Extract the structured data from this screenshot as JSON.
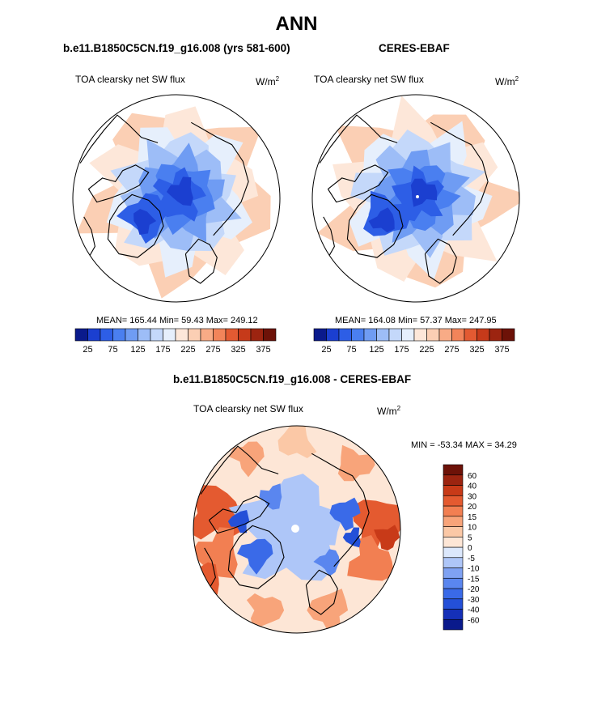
{
  "figure": {
    "title": "ANN",
    "panel_left": {
      "case": "b.e11.B1850C5CN.f19_g16.008 (yrs 581-600)",
      "variable": "TOA clearsky net SW flux",
      "units_base": "W/m",
      "units_exp": "2",
      "stats": "MEAN= 165.44  Min=  59.43  Max= 249.12"
    },
    "panel_right": {
      "case": "CERES-EBAF",
      "variable": "TOA clearsky net SW flux",
      "units_base": "W/m",
      "units_exp": "2",
      "stats": "MEAN= 164.08  Min=  57.37  Max= 247.95"
    },
    "panel_diff": {
      "case": "b.e11.B1850C5CN.f19_g16.008 - CERES-EBAF",
      "variable": "TOA clearsky net SW flux",
      "units_base": "W/m",
      "units_exp": "2",
      "stats": "MIN = -53.34 MAX =  34.29"
    }
  },
  "chart_data": [
    {
      "type": "heatmap",
      "projection": "north polar stereographic",
      "title": "b.e11.B1850C5CN.f19_g16.008 (yrs 581-600)",
      "variable": "TOA clearsky net SW flux",
      "units": "W/m2",
      "mean": 165.44,
      "min": 59.43,
      "max": 249.12,
      "colorbar_levels": [
        25,
        50,
        75,
        100,
        125,
        150,
        175,
        200,
        225,
        250,
        275,
        300,
        325,
        350,
        375
      ],
      "colorbar_tick_labels": [
        "25",
        "75",
        "125",
        "175",
        "225",
        "275",
        "325",
        "375"
      ],
      "colorbar_colors": [
        "#0a1a8c",
        "#1b3fd0",
        "#2d5ee6",
        "#4a7ff0",
        "#6f9cf3",
        "#9dbdf7",
        "#c4d8fa",
        "#e6effc",
        "#fde7d9",
        "#fbcfb4",
        "#f8ab86",
        "#f2845a",
        "#e35a32",
        "#c63a1a",
        "#9c2410",
        "#6d1208"
      ]
    },
    {
      "type": "heatmap",
      "projection": "north polar stereographic",
      "title": "CERES-EBAF",
      "variable": "TOA clearsky net SW flux",
      "units": "W/m2",
      "mean": 164.08,
      "min": 57.37,
      "max": 247.95,
      "colorbar_levels": [
        25,
        50,
        75,
        100,
        125,
        150,
        175,
        200,
        225,
        250,
        275,
        300,
        325,
        350,
        375
      ],
      "colorbar_tick_labels": [
        "25",
        "75",
        "125",
        "175",
        "225",
        "275",
        "325",
        "375"
      ],
      "colorbar_colors": [
        "#0a1a8c",
        "#1b3fd0",
        "#2d5ee6",
        "#4a7ff0",
        "#6f9cf3",
        "#9dbdf7",
        "#c4d8fa",
        "#e6effc",
        "#fde7d9",
        "#fbcfb4",
        "#f8ab86",
        "#f2845a",
        "#e35a32",
        "#c63a1a",
        "#9c2410",
        "#6d1208"
      ]
    },
    {
      "type": "heatmap",
      "projection": "north polar stereographic",
      "title": "b.e11.B1850C5CN.f19_g16.008 - CERES-EBAF",
      "variable": "TOA clearsky net SW flux",
      "units": "W/m2",
      "min": -53.34,
      "max": 34.29,
      "colorbar_levels": [
        -60,
        -40,
        -30,
        -20,
        -15,
        -10,
        -5,
        0,
        5,
        10,
        15,
        20,
        30,
        40,
        60
      ],
      "colorbar_tick_labels": [
        "-60",
        "-40",
        "-30",
        "-20",
        "-15",
        "-10",
        "-5",
        "0",
        "5",
        "10",
        "15",
        "20",
        "30",
        "40",
        "60"
      ],
      "colorbar_colors": [
        "#0a1a8c",
        "#1530b8",
        "#2450d8",
        "#3a6ae8",
        "#5a86ef",
        "#7fa2f3",
        "#aec6f8",
        "#dce8fc",
        "#fde6d6",
        "#fbc8a6",
        "#f8a47a",
        "#f27f52",
        "#e45a30",
        "#c83a18",
        "#9c2410",
        "#6d1208"
      ]
    }
  ]
}
